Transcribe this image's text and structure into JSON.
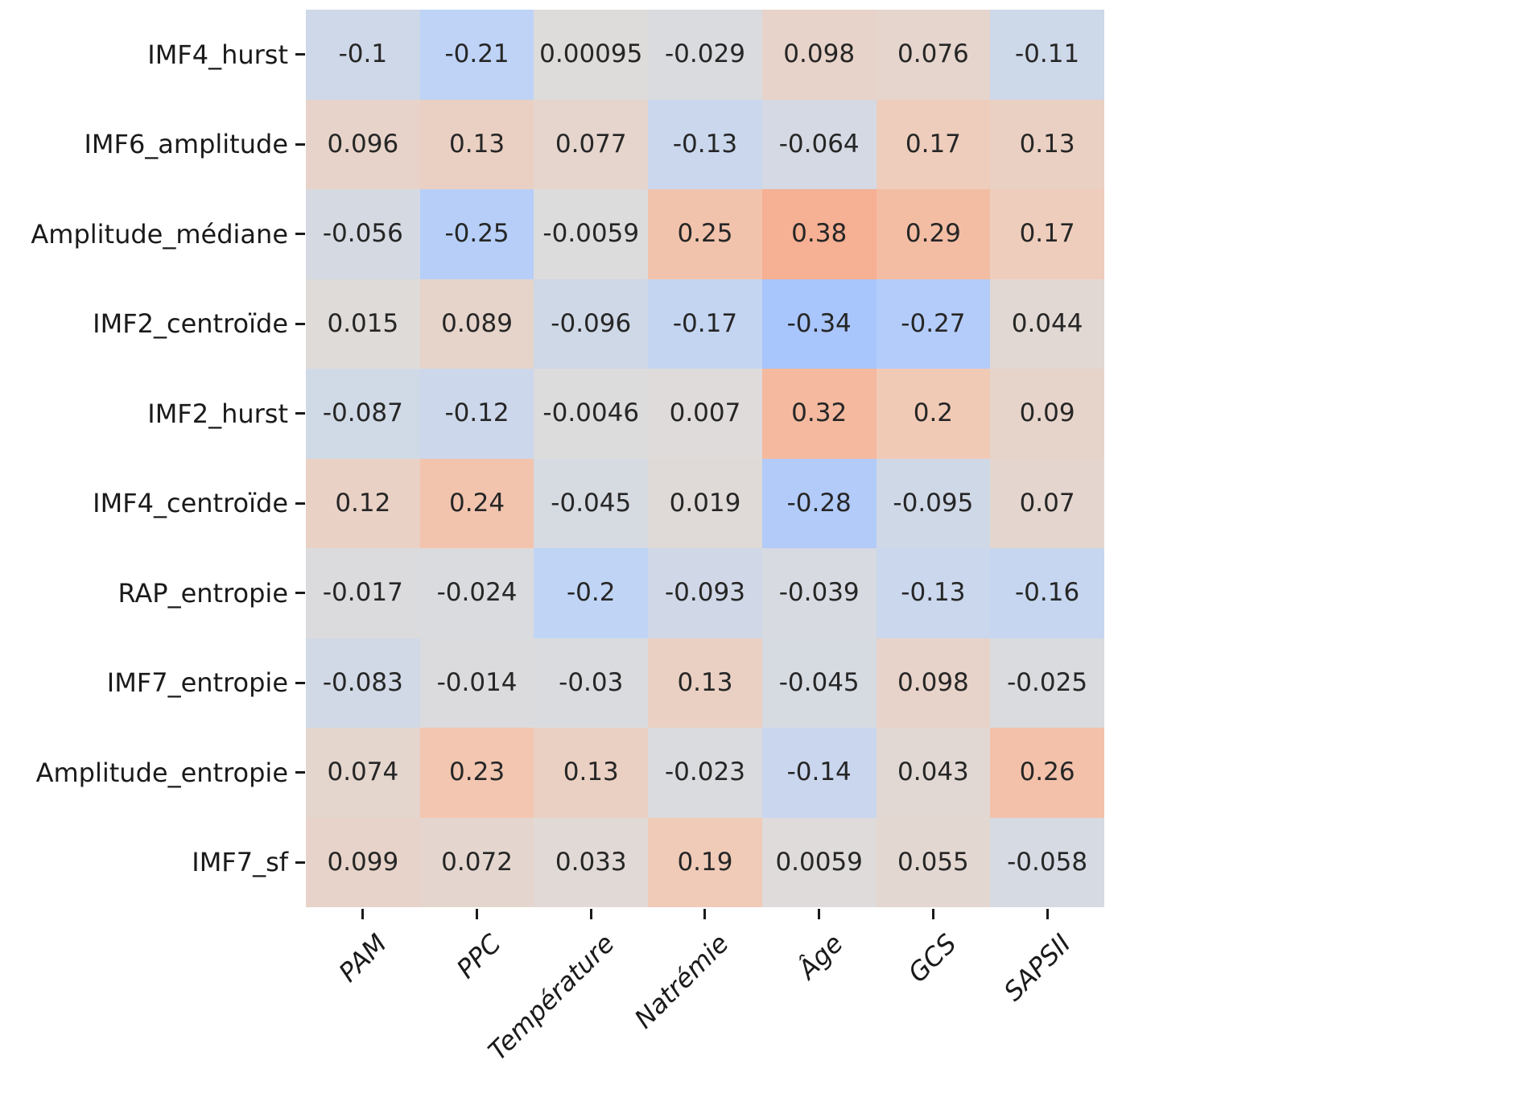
{
  "chart_data": {
    "type": "heatmap",
    "title": "",
    "xlabel": "",
    "ylabel": "",
    "legend": "none",
    "grid": false,
    "columns": [
      "PAM",
      "PPC",
      "Température",
      "Natrémie",
      "Âge",
      "GCS",
      "SAPSII"
    ],
    "rows": [
      "IMF4_hurst",
      "IMF6_amplitude",
      "Amplitude_médiane",
      "IMF2_centroïde",
      "IMF2_hurst",
      "IMF4_centroïde",
      "RAP_entropie",
      "IMF7_entropie",
      "Amplitude_entropie",
      "IMF7_sf"
    ],
    "values": [
      [
        "-0.1",
        "-0.21",
        "0.00095",
        "-0.029",
        "0.098",
        "0.076",
        "-0.11"
      ],
      [
        "0.096",
        "0.13",
        "0.077",
        "-0.13",
        "-0.064",
        "0.17",
        "0.13"
      ],
      [
        "-0.056",
        "-0.25",
        "-0.0059",
        "0.25",
        "0.38",
        "0.29",
        "0.17"
      ],
      [
        "0.015",
        "0.089",
        "-0.096",
        "-0.17",
        "-0.34",
        "-0.27",
        "0.044"
      ],
      [
        "-0.087",
        "-0.12",
        "-0.0046",
        "0.007",
        "0.32",
        "0.2",
        "0.09"
      ],
      [
        "0.12",
        "0.24",
        "-0.045",
        "0.019",
        "-0.28",
        "-0.095",
        "0.07"
      ],
      [
        "-0.017",
        "-0.024",
        "-0.2",
        "-0.093",
        "-0.039",
        "-0.13",
        "-0.16"
      ],
      [
        "-0.083",
        "-0.014",
        "-0.03",
        "0.13",
        "-0.045",
        "0.098",
        "-0.025"
      ],
      [
        "0.074",
        "0.23",
        "0.13",
        "-0.023",
        "-0.14",
        "0.043",
        "0.26"
      ],
      [
        "0.099",
        "0.072",
        "0.033",
        "0.19",
        "0.0059",
        "0.055",
        "-0.058"
      ]
    ],
    "colormap": {
      "name": "coolwarm",
      "vmin": -1,
      "vmax": 1,
      "anchors": [
        "#3b4cc0",
        "#5876e2",
        "#7b9ef8",
        "#9dbeff",
        "#c0d4f5",
        "#dddcdb",
        "#f1cab6",
        "#f6ad8f",
        "#ed8467",
        "#d65143",
        "#b40426"
      ]
    },
    "annotation_color": "#262626",
    "tick_color": "#1a1a1a"
  }
}
